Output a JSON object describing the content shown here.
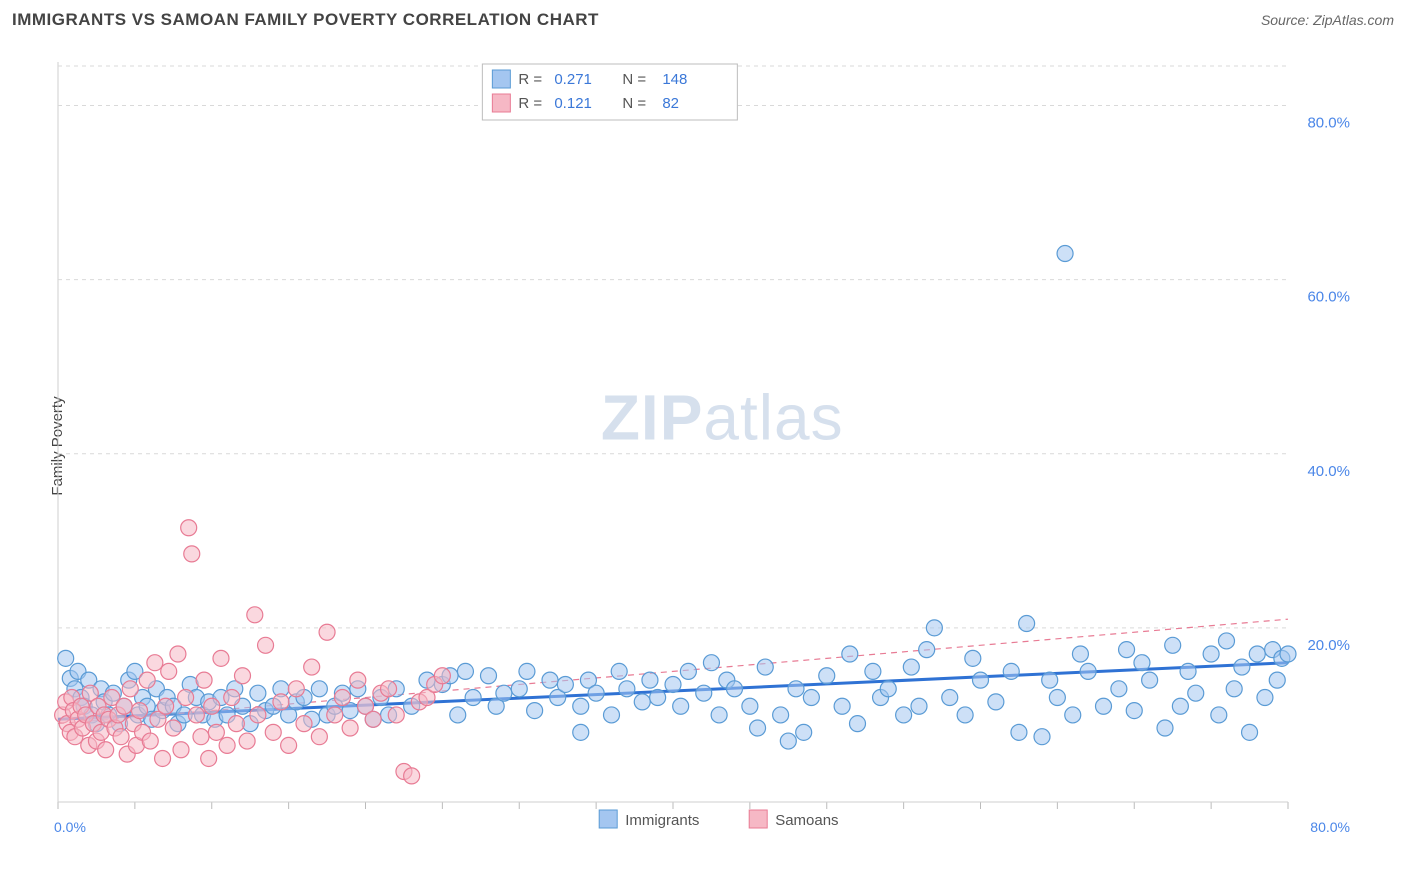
{
  "header": {
    "title": "IMMIGRANTS VS SAMOAN FAMILY POVERTY CORRELATION CHART",
    "source_prefix": "Source: ",
    "source_name": "ZipAtlas.com"
  },
  "ylabel": "Family Poverty",
  "watermark": {
    "part1": "ZIP",
    "part2": "atlas"
  },
  "chart": {
    "type": "scatter",
    "xlim": [
      0,
      80
    ],
    "ylim": [
      0,
      85
    ],
    "x_origin_label": "0.0%",
    "x_end_label": "80.0%",
    "y_ticks": [
      {
        "v": 20,
        "label": "20.0%"
      },
      {
        "v": 40,
        "label": "40.0%"
      },
      {
        "v": 60,
        "label": "60.0%"
      },
      {
        "v": 80,
        "label": "80.0%"
      }
    ],
    "x_minor_tick_step": 5,
    "plot_background": "#ffffff",
    "grid_color": "#d9d9d9",
    "marker_radius": 8,
    "series": [
      {
        "id": "immigrants",
        "label": "Immigrants",
        "color_fill": "#a4c6f0",
        "color_stroke": "#5a9bd5",
        "R": "0.271",
        "N": "148",
        "trend": {
          "x1": 0,
          "y1": 9.5,
          "x2": 80,
          "y2": 16.0,
          "style": "solid",
          "color": "#2f72d4",
          "width": 3
        },
        "points": [
          [
            0.5,
            16.5
          ],
          [
            0.8,
            14.2
          ],
          [
            1.1,
            13.0
          ],
          [
            1.3,
            15.0
          ],
          [
            1.5,
            12.0
          ],
          [
            1.7,
            11.0
          ],
          [
            2.0,
            14.0
          ],
          [
            2.2,
            10.0
          ],
          [
            2.5,
            9.0
          ],
          [
            2.8,
            13.0
          ],
          [
            3.0,
            11.5
          ],
          [
            3.3,
            10.0
          ],
          [
            3.6,
            12.5
          ],
          [
            4.0,
            9.0
          ],
          [
            4.3,
            11.0
          ],
          [
            4.6,
            14.0
          ],
          [
            5.0,
            15.0
          ],
          [
            5.2,
            10.0
          ],
          [
            5.5,
            12.0
          ],
          [
            5.8,
            11.0
          ],
          [
            6.1,
            9.5
          ],
          [
            6.4,
            13.0
          ],
          [
            6.8,
            10.5
          ],
          [
            7.1,
            12.0
          ],
          [
            7.5,
            11.0
          ],
          [
            7.8,
            9.0
          ],
          [
            8.2,
            10.0
          ],
          [
            8.6,
            13.5
          ],
          [
            9.0,
            12.0
          ],
          [
            9.4,
            10.0
          ],
          [
            9.8,
            11.5
          ],
          [
            10.2,
            9.5
          ],
          [
            10.6,
            12.0
          ],
          [
            11.0,
            10.0
          ],
          [
            11.5,
            13.0
          ],
          [
            12.0,
            11.0
          ],
          [
            12.5,
            9.0
          ],
          [
            13.0,
            12.5
          ],
          [
            13.5,
            10.5
          ],
          [
            14.0,
            11.0
          ],
          [
            14.5,
            13.0
          ],
          [
            15.0,
            10.0
          ],
          [
            15.5,
            11.5
          ],
          [
            16.0,
            12.0
          ],
          [
            16.5,
            9.5
          ],
          [
            17.0,
            13.0
          ],
          [
            17.5,
            10.0
          ],
          [
            18.0,
            11.0
          ],
          [
            18.5,
            12.5
          ],
          [
            19.0,
            10.5
          ],
          [
            19.5,
            13.0
          ],
          [
            20.0,
            11.0
          ],
          [
            20.5,
            9.5
          ],
          [
            21.0,
            12.0
          ],
          [
            21.5,
            10.0
          ],
          [
            22.0,
            13.0
          ],
          [
            23.0,
            11.0
          ],
          [
            24.0,
            14.0
          ],
          [
            25.0,
            13.5
          ],
          [
            25.5,
            14.5
          ],
          [
            26.0,
            10.0
          ],
          [
            26.5,
            15.0
          ],
          [
            27.0,
            12.0
          ],
          [
            28.0,
            14.5
          ],
          [
            28.5,
            11.0
          ],
          [
            29.0,
            12.5
          ],
          [
            30.0,
            13.0
          ],
          [
            30.5,
            15.0
          ],
          [
            31.0,
            10.5
          ],
          [
            32.0,
            14.0
          ],
          [
            32.5,
            12.0
          ],
          [
            33.0,
            13.5
          ],
          [
            34.0,
            11.0
          ],
          [
            34.5,
            14.0
          ],
          [
            35.0,
            12.5
          ],
          [
            36.0,
            10.0
          ],
          [
            36.5,
            15.0
          ],
          [
            37.0,
            13.0
          ],
          [
            38.0,
            11.5
          ],
          [
            38.5,
            14.0
          ],
          [
            39.0,
            12.0
          ],
          [
            40.0,
            13.5
          ],
          [
            40.5,
            11.0
          ],
          [
            41.0,
            15.0
          ],
          [
            42.0,
            12.5
          ],
          [
            43.0,
            10.0
          ],
          [
            43.5,
            14.0
          ],
          [
            44.0,
            13.0
          ],
          [
            45.0,
            11.0
          ],
          [
            46.0,
            15.5
          ],
          [
            47.0,
            10.0
          ],
          [
            47.5,
            7.0
          ],
          [
            48.0,
            13.0
          ],
          [
            49.0,
            12.0
          ],
          [
            50.0,
            14.5
          ],
          [
            51.0,
            11.0
          ],
          [
            52.0,
            9.0
          ],
          [
            53.0,
            15.0
          ],
          [
            53.5,
            12.0
          ],
          [
            54.0,
            13.0
          ],
          [
            55.0,
            10.0
          ],
          [
            55.5,
            15.5
          ],
          [
            56.0,
            11.0
          ],
          [
            57.0,
            20.0
          ],
          [
            58.0,
            12.0
          ],
          [
            59.0,
            10.0
          ],
          [
            60.0,
            14.0
          ],
          [
            61.0,
            11.5
          ],
          [
            62.0,
            15.0
          ],
          [
            62.5,
            8.0
          ],
          [
            63.0,
            20.5
          ],
          [
            64.0,
            7.5
          ],
          [
            64.5,
            14.0
          ],
          [
            65.0,
            12.0
          ],
          [
            66.0,
            10.0
          ],
          [
            66.5,
            17.0
          ],
          [
            67.0,
            15.0
          ],
          [
            68.0,
            11.0
          ],
          [
            69.0,
            13.0
          ],
          [
            69.5,
            17.5
          ],
          [
            70.0,
            10.5
          ],
          [
            70.5,
            16.0
          ],
          [
            71.0,
            14.0
          ],
          [
            72.0,
            8.5
          ],
          [
            72.5,
            18.0
          ],
          [
            73.0,
            11.0
          ],
          [
            73.5,
            15.0
          ],
          [
            74.0,
            12.5
          ],
          [
            75.0,
            17.0
          ],
          [
            75.5,
            10.0
          ],
          [
            76.0,
            18.5
          ],
          [
            76.5,
            13.0
          ],
          [
            77.0,
            15.5
          ],
          [
            77.5,
            8.0
          ],
          [
            78.0,
            17.0
          ],
          [
            78.5,
            12.0
          ],
          [
            79.0,
            17.5
          ],
          [
            79.3,
            14.0
          ],
          [
            79.6,
            16.5
          ],
          [
            80.0,
            17.0
          ],
          [
            65.5,
            63.0
          ],
          [
            56.5,
            17.5
          ],
          [
            51.5,
            17.0
          ],
          [
            48.5,
            8.0
          ],
          [
            45.5,
            8.5
          ],
          [
            42.5,
            16.0
          ],
          [
            59.5,
            16.5
          ],
          [
            34.0,
            8.0
          ]
        ]
      },
      {
        "id": "samoans",
        "label": "Samoans",
        "color_fill": "#f6b8c5",
        "color_stroke": "#e87b94",
        "R": "0.121",
        "N": "82",
        "trend": {
          "x1": 0,
          "y1": 9.0,
          "x2": 80,
          "y2": 21.0,
          "style": "dashed",
          "color": "#e87b94",
          "width": 1.2
        },
        "points": [
          [
            0.3,
            10.0
          ],
          [
            0.5,
            11.5
          ],
          [
            0.6,
            9.0
          ],
          [
            0.8,
            8.0
          ],
          [
            0.9,
            12.0
          ],
          [
            1.0,
            10.5
          ],
          [
            1.1,
            7.5
          ],
          [
            1.3,
            9.5
          ],
          [
            1.5,
            11.0
          ],
          [
            1.6,
            8.5
          ],
          [
            1.8,
            10.0
          ],
          [
            2.0,
            6.5
          ],
          [
            2.1,
            12.5
          ],
          [
            2.3,
            9.0
          ],
          [
            2.5,
            7.0
          ],
          [
            2.6,
            11.0
          ],
          [
            2.8,
            8.0
          ],
          [
            3.0,
            10.0
          ],
          [
            3.1,
            6.0
          ],
          [
            3.3,
            9.5
          ],
          [
            3.5,
            12.0
          ],
          [
            3.7,
            8.5
          ],
          [
            3.9,
            10.0
          ],
          [
            4.1,
            7.5
          ],
          [
            4.3,
            11.0
          ],
          [
            4.5,
            5.5
          ],
          [
            4.7,
            13.0
          ],
          [
            4.9,
            9.0
          ],
          [
            5.1,
            6.5
          ],
          [
            5.3,
            10.5
          ],
          [
            5.5,
            8.0
          ],
          [
            5.8,
            14.0
          ],
          [
            6.0,
            7.0
          ],
          [
            6.3,
            16.0
          ],
          [
            6.5,
            9.5
          ],
          [
            6.8,
            5.0
          ],
          [
            7.0,
            11.0
          ],
          [
            7.2,
            15.0
          ],
          [
            7.5,
            8.5
          ],
          [
            7.8,
            17.0
          ],
          [
            8.0,
            6.0
          ],
          [
            8.3,
            12.0
          ],
          [
            8.5,
            31.5
          ],
          [
            8.7,
            28.5
          ],
          [
            9.0,
            10.0
          ],
          [
            9.3,
            7.5
          ],
          [
            9.5,
            14.0
          ],
          [
            9.8,
            5.0
          ],
          [
            10.0,
            11.0
          ],
          [
            10.3,
            8.0
          ],
          [
            10.6,
            16.5
          ],
          [
            11.0,
            6.5
          ],
          [
            11.3,
            12.0
          ],
          [
            11.6,
            9.0
          ],
          [
            12.0,
            14.5
          ],
          [
            12.3,
            7.0
          ],
          [
            12.8,
            21.5
          ],
          [
            13.0,
            10.0
          ],
          [
            13.5,
            18.0
          ],
          [
            14.0,
            8.0
          ],
          [
            14.5,
            11.5
          ],
          [
            15.0,
            6.5
          ],
          [
            15.5,
            13.0
          ],
          [
            16.0,
            9.0
          ],
          [
            16.5,
            15.5
          ],
          [
            17.0,
            7.5
          ],
          [
            17.5,
            19.5
          ],
          [
            18.0,
            10.0
          ],
          [
            18.5,
            12.0
          ],
          [
            19.0,
            8.5
          ],
          [
            19.5,
            14.0
          ],
          [
            20.0,
            11.0
          ],
          [
            20.5,
            9.5
          ],
          [
            21.0,
            12.5
          ],
          [
            21.5,
            13.0
          ],
          [
            22.0,
            10.0
          ],
          [
            22.5,
            3.5
          ],
          [
            23.0,
            3.0
          ],
          [
            23.5,
            11.5
          ],
          [
            24.0,
            12.0
          ],
          [
            24.5,
            13.5
          ],
          [
            25.0,
            14.5
          ]
        ]
      }
    ]
  },
  "legendTop": {
    "rows": [
      {
        "swatch": "b",
        "R_label": "R = ",
        "R_val": "0.271",
        "N_label": "N = ",
        "N_val": "148"
      },
      {
        "swatch": "p",
        "R_label": "R = ",
        "R_val": "0.121",
        "N_label": "N = ",
        "N_val": "82"
      }
    ]
  },
  "legendBottom": {
    "items": [
      {
        "swatch": "b",
        "label": "Immigrants"
      },
      {
        "swatch": "p",
        "label": "Samoans"
      }
    ]
  }
}
